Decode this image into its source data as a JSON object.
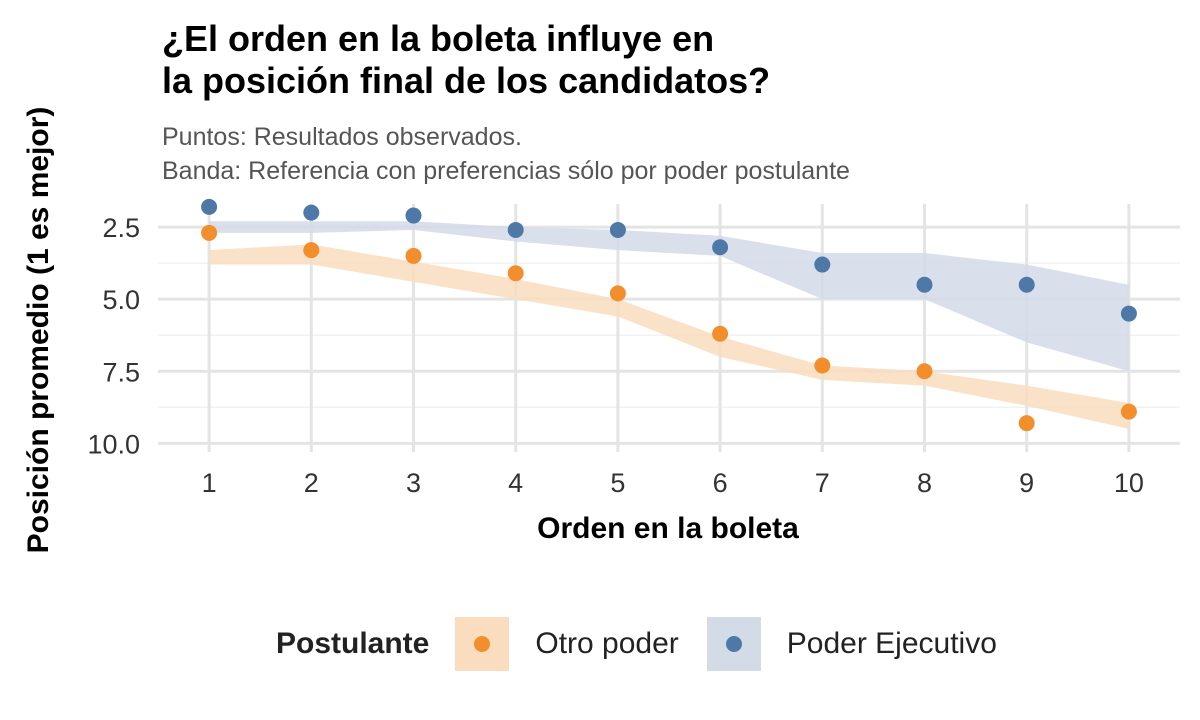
{
  "title_line1": "¿El orden en la boleta influye en",
  "title_line2": "la posición final de los candidatos?",
  "subtitle_line1": "Puntos: Resultados observados.",
  "subtitle_line2": "Banda: Referencia con preferencias sólo por poder postulante",
  "legend": {
    "title": "Postulante",
    "items": [
      {
        "label": "Otro poder",
        "color": "#F28E2B",
        "band_color": "#F9DDBE"
      },
      {
        "label": "Poder Ejecutivo",
        "color": "#4E79A7",
        "band_color": "#D3DBE7"
      }
    ]
  },
  "chart_data": {
    "type": "scatter",
    "title": "¿El orden en la boleta influye en la posición final de los candidatos?",
    "xlabel": "Orden en la boleta",
    "ylabel": "Posición promedio (1 es mejor)",
    "x": [
      1,
      2,
      3,
      4,
      5,
      6,
      7,
      8,
      9,
      10
    ],
    "x_ticks": [
      "1",
      "2",
      "3",
      "4",
      "5",
      "6",
      "7",
      "8",
      "9",
      "10"
    ],
    "y_ticks": [
      "2.5",
      "5.0",
      "7.5",
      "10.0"
    ],
    "y_tick_values": [
      2.5,
      5.0,
      7.5,
      10.0
    ],
    "y_reversed": true,
    "xlim": [
      0.5,
      10.5
    ],
    "ylim": [
      1.7,
      10.3
    ],
    "series": [
      {
        "name": "Otro poder",
        "color": "#F28E2B",
        "points": [
          2.7,
          3.3,
          3.5,
          4.1,
          4.8,
          6.2,
          7.3,
          7.5,
          9.3,
          8.9
        ],
        "band_lower": [
          3.3,
          3.1,
          3.7,
          4.3,
          5.0,
          6.3,
          7.3,
          7.5,
          8.0,
          8.6
        ],
        "band_upper": [
          3.8,
          3.8,
          4.4,
          5.0,
          5.6,
          7.0,
          7.8,
          8.0,
          8.7,
          9.5
        ]
      },
      {
        "name": "Poder Ejecutivo",
        "color": "#4E79A7",
        "points": [
          1.8,
          2.0,
          2.1,
          2.6,
          2.6,
          3.2,
          3.8,
          4.5,
          4.5,
          5.5
        ],
        "band_lower": [
          2.3,
          2.3,
          2.3,
          2.5,
          2.6,
          2.8,
          3.4,
          3.4,
          3.8,
          4.5
        ],
        "band_upper": [
          2.7,
          2.7,
          2.6,
          3.0,
          3.3,
          3.5,
          5.0,
          5.0,
          6.5,
          7.5
        ]
      }
    ]
  }
}
